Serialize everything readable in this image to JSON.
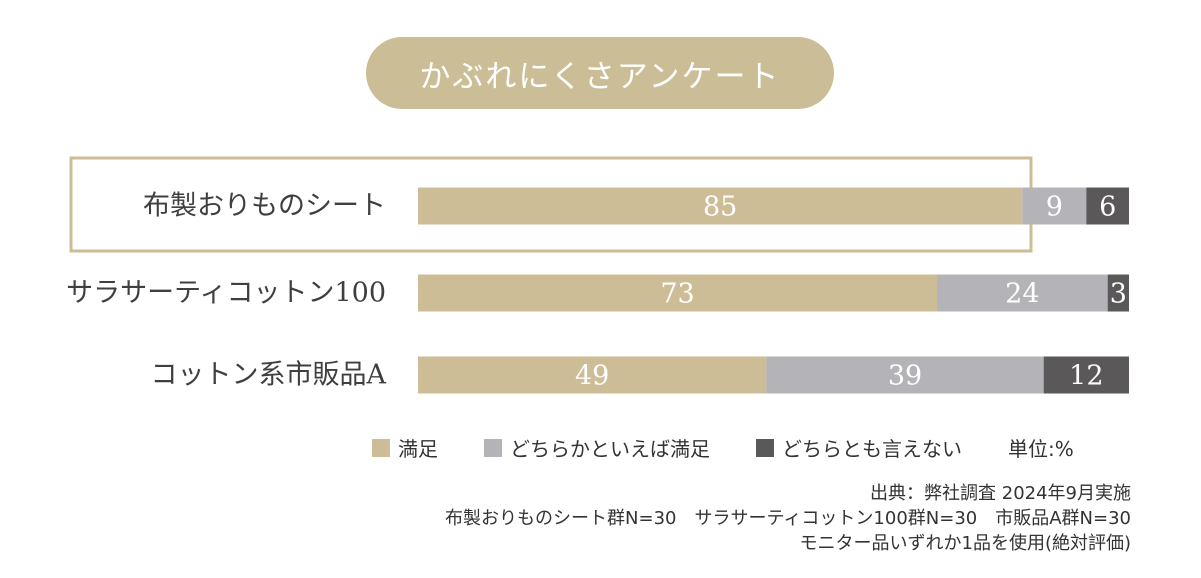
{
  "title": "かぶれにくさアンケート",
  "chart_data": {
    "type": "bar",
    "orientation": "horizontal",
    "stacked": true,
    "unit": "%",
    "categories": [
      "布製おりものシート",
      "サラサーティコットン100",
      "コットン系市販品A"
    ],
    "highlighted_category": "布製おりものシート",
    "series": [
      {
        "name": "満足",
        "values": [
          85,
          73,
          49
        ],
        "color": "#cdbd97",
        "label_color": "#ffffff"
      },
      {
        "name": "どちらかといえば満足",
        "values": [
          9,
          24,
          39
        ],
        "color": "#b4b3b8",
        "label_color": "#ffffff"
      },
      {
        "name": "どちらとも言えない",
        "values": [
          6,
          3,
          12
        ],
        "color": "#5a5858",
        "label_color": "#ffffff"
      }
    ],
    "xlim": [
      0,
      100
    ],
    "grid": false,
    "legend_position": "bottom"
  },
  "legend": {
    "items": [
      "満足",
      "どちらかといえば満足",
      "どちらとも言えない"
    ],
    "unit_label": "単位:%"
  },
  "source": {
    "line1": "出典：弊社調査 2024年9月実施",
    "line2": "布製おりものシート群N=30　サラサーティコットン100群N=30　市販品A群N=30",
    "line3": "モニター品いずれか1品を使用(絶対評価)"
  }
}
